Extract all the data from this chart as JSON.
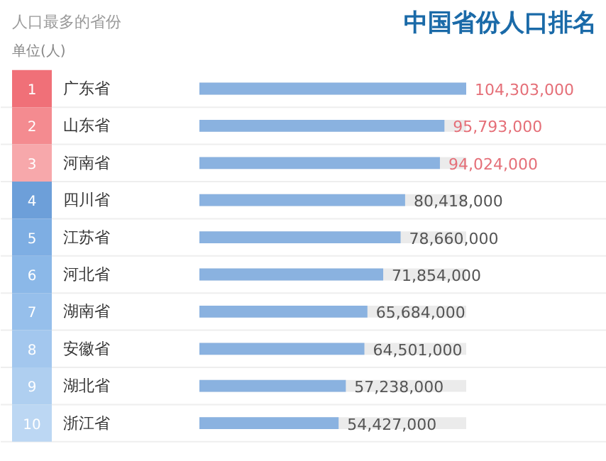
{
  "chart_data": {
    "type": "bar",
    "orientation": "horizontal",
    "title": "中国省份人口排名",
    "subtitle": "人口最多的省份",
    "annotations": [
      "单位(人)",
      "1",
      "2",
      "3",
      "4",
      "5",
      "6",
      "7",
      "8",
      "9",
      "10"
    ],
    "categories": [
      "广东省",
      "山东省",
      "河南省",
      "四川省",
      "江苏省",
      "河北省",
      "湖南省",
      "安徽省",
      "湖北省",
      "浙江省"
    ],
    "values": [
      104303000,
      95793000,
      94024000,
      80418000,
      78660000,
      71854000,
      65684000,
      64501000,
      57238000,
      54427000
    ],
    "value_labels": [
      "104,303,000",
      "95,793,000",
      "94,024,000",
      "80,418,000",
      "78,660,000",
      "71,854,000",
      "65,684,000",
      "64,501,000",
      "57,238,000",
      "54,427,000"
    ],
    "color": "#8ab2e0",
    "xlim": [
      0,
      104303000
    ],
    "grid": false
  }
}
